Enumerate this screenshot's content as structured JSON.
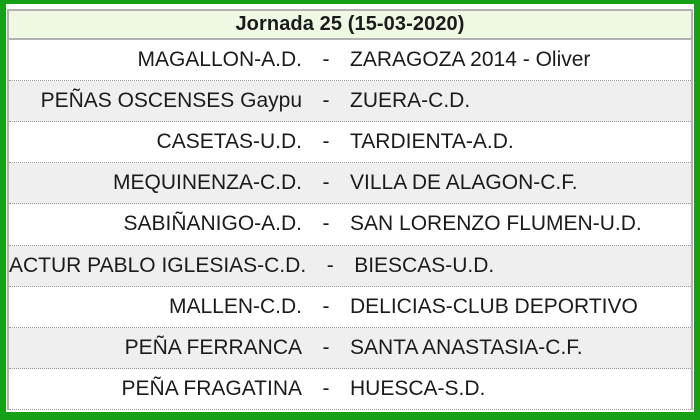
{
  "header": {
    "title": "Jornada 25 (15-03-2020)"
  },
  "separator": "-",
  "matches": [
    {
      "home": "MAGALLON-A.D.",
      "away": "ZARAGOZA 2014 - Oliver"
    },
    {
      "home": "PEÑAS OSCENSES Gaypu",
      "away": "ZUERA-C.D."
    },
    {
      "home": "CASETAS-U.D.",
      "away": "TARDIENTA-A.D."
    },
    {
      "home": "MEQUINENZA-C.D.",
      "away": "VILLA DE ALAGON-C.F."
    },
    {
      "home": "SABIÑANIGO-A.D.",
      "away": "SAN LORENZO FLUMEN-U.D."
    },
    {
      "home": "ACTUR PABLO IGLESIAS-C.D.",
      "away": "BIESCAS-U.D."
    },
    {
      "home": "MALLEN-C.D.",
      "away": "DELICIAS-CLUB DEPORTIVO"
    },
    {
      "home": "PEÑA FERRANCA",
      "away": "SANTA ANASTASIA-C.F."
    },
    {
      "home": "PEÑA FRAGATINA",
      "away": "HUESCA-S.D."
    }
  ],
  "colors": {
    "frame_green": "#16A016",
    "header_bg": "#EEF8E3",
    "row_alt_bg": "#EFEFEF",
    "table_border": "#B2B2B2",
    "dotted_line": "#999999",
    "text": "#1B1B1B"
  }
}
